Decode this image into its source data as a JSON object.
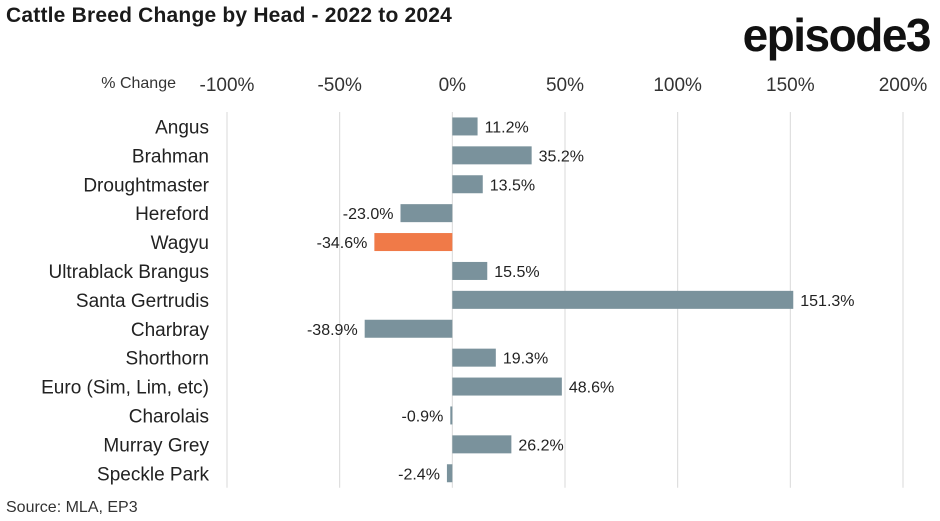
{
  "title": "Cattle Breed Change by Head - 2022 to 2024",
  "logo_text": "episode3",
  "source": "Source: MLA, EP3",
  "chart_data": {
    "type": "bar",
    "orientation": "horizontal",
    "axis_label": "% Change",
    "tick_labels": [
      "-100%",
      "-50%",
      "0%",
      "50%",
      "100%",
      "150%",
      "200%"
    ],
    "tick_values": [
      -100,
      -50,
      0,
      50,
      100,
      150,
      200
    ],
    "xlim": [
      -100,
      200
    ],
    "grid": true,
    "categories": [
      "Angus",
      "Brahman",
      "Droughtmaster",
      "Hereford",
      "Wagyu",
      "Ultrablack Brangus",
      "Santa Gertrudis",
      "Charbray",
      "Shorthorn",
      "Euro (Sim, Lim, etc)",
      "Charolais",
      "Murray Grey",
      "Speckle Park"
    ],
    "values": [
      11.2,
      35.2,
      13.5,
      -23.0,
      -34.6,
      15.5,
      151.3,
      -38.9,
      19.3,
      48.6,
      -0.9,
      26.2,
      -2.4
    ],
    "value_labels": [
      "11.2%",
      "35.2%",
      "13.5%",
      "-23.0%",
      "-34.6%",
      "15.5%",
      "151.3%",
      "-38.9%",
      "19.3%",
      "48.6%",
      "-0.9%",
      "26.2%",
      "-2.4%"
    ],
    "bar_color": "#7a929c",
    "highlight_color": "#f07a48",
    "highlight_category": "Wagyu",
    "grid_color": "#d9d9d9"
  }
}
